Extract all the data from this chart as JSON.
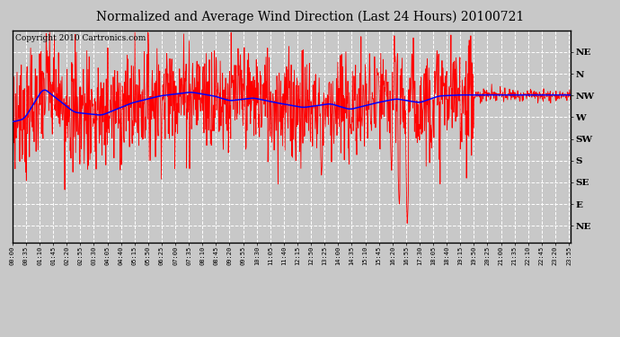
{
  "title": "Normalized and Average Wind Direction (Last 24 Hours) 20100721",
  "copyright": "Copyright 2010 Cartronics.com",
  "bg_color": "#c8c8c8",
  "red_line_color": "#ff0000",
  "blue_line_color": "#0000ff",
  "grid_color": "#ffffff",
  "title_fontsize": 10,
  "copyright_fontsize": 6.5,
  "y_labels": [
    "NE",
    "N",
    "NW",
    "W",
    "SW",
    "S",
    "SE",
    "E",
    "NE"
  ],
  "y_values": [
    337.5,
    315.0,
    292.5,
    270.0,
    247.5,
    225.0,
    202.5,
    180.0,
    157.5
  ],
  "ylim": [
    140,
    360
  ],
  "tick_interval_min": 35,
  "data_interval_min": 1,
  "total_minutes": 1440
}
